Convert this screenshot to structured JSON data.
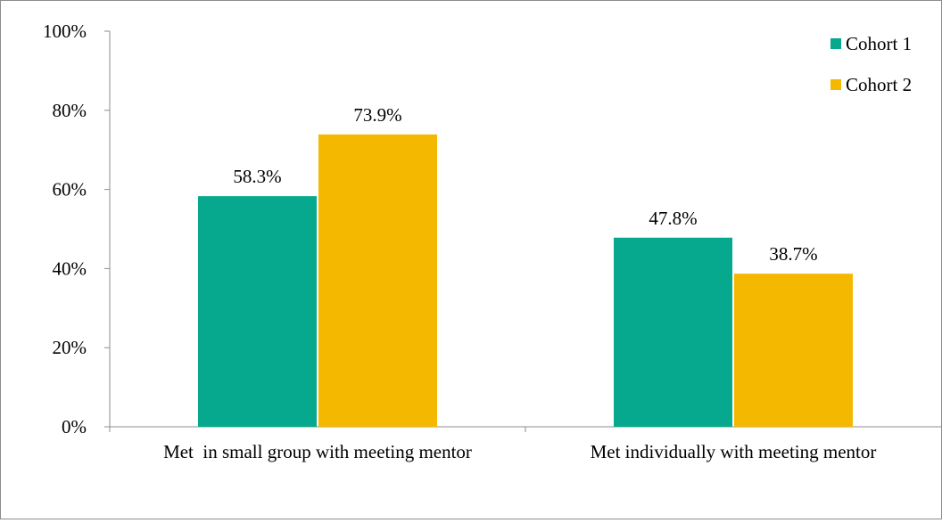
{
  "chart_data": {
    "type": "bar",
    "categories": [
      "Met  in small group with meeting mentor",
      "Met individually with meeting mentor"
    ],
    "series": [
      {
        "name": "Cohort 1",
        "color": "#06A88E",
        "values": [
          58.3,
          47.8
        ],
        "labels": [
          "58.3%",
          "47.8%"
        ]
      },
      {
        "name": "Cohort 2",
        "color": "#F5B800",
        "values": [
          73.9,
          38.7
        ],
        "labels": [
          "73.9%",
          "38.7%"
        ]
      }
    ],
    "ylim": [
      0,
      100
    ],
    "yticks": [
      {
        "value": 0,
        "label": "0%"
      },
      {
        "value": 20,
        "label": "20%"
      },
      {
        "value": 40,
        "label": "40%"
      },
      {
        "value": 60,
        "label": "60%"
      },
      {
        "value": 80,
        "label": "80%"
      },
      {
        "value": 100,
        "label": "100%"
      }
    ],
    "title": "",
    "xlabel": "",
    "ylabel": "",
    "grid": false,
    "legend_position": "top-right"
  }
}
